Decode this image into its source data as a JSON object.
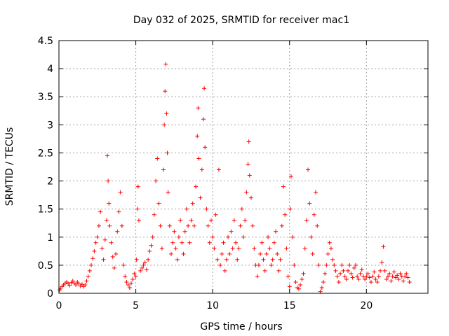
{
  "chart_data": {
    "type": "scatter",
    "title": "Day 032 of 2025, SRMTID for receiver mac1",
    "xlabel": "GPS time / hours",
    "ylabel": "SRMTID / TECUs",
    "xlim": [
      0,
      24
    ],
    "ylim": [
      0,
      4.5
    ],
    "xticks": [
      0,
      5,
      10,
      15,
      20
    ],
    "yticks": [
      0,
      0.5,
      1,
      1.5,
      2,
      2.5,
      3,
      3.5,
      4,
      4.5
    ],
    "xtick_labels": [
      "0",
      "5",
      "10",
      "15",
      "20"
    ],
    "ytick_labels": [
      "0",
      "0.5",
      "1",
      "1.5",
      "2",
      "2.5",
      "3",
      "3.5",
      "4",
      "4.5"
    ],
    "grid": true,
    "marker": "+",
    "color": "#ff0000",
    "series": [
      {
        "name": "SRMTID",
        "points": [
          [
            0.05,
            0.06
          ],
          [
            0.1,
            0.09
          ],
          [
            0.2,
            0.12
          ],
          [
            0.3,
            0.15
          ],
          [
            0.4,
            0.18
          ],
          [
            0.5,
            0.2
          ],
          [
            0.6,
            0.17
          ],
          [
            0.7,
            0.14
          ],
          [
            0.8,
            0.19
          ],
          [
            0.9,
            0.22
          ],
          [
            1.0,
            0.18
          ],
          [
            1.1,
            0.15
          ],
          [
            1.2,
            0.2
          ],
          [
            1.3,
            0.17
          ],
          [
            1.4,
            0.13
          ],
          [
            1.5,
            0.16
          ],
          [
            1.6,
            0.12
          ],
          [
            1.7,
            0.15
          ],
          [
            1.8,
            0.22
          ],
          [
            1.9,
            0.3
          ],
          [
            2.0,
            0.4
          ],
          [
            2.1,
            0.5
          ],
          [
            2.2,
            0.62
          ],
          [
            2.3,
            0.75
          ],
          [
            2.4,
            0.9
          ],
          [
            2.5,
            1.0
          ],
          [
            2.6,
            1.2
          ],
          [
            2.7,
            1.45
          ],
          [
            2.8,
            0.8
          ],
          [
            2.9,
            0.6
          ],
          [
            3.0,
            0.95
          ],
          [
            3.1,
            1.3
          ],
          [
            3.15,
            2.45
          ],
          [
            3.2,
            2.0
          ],
          [
            3.25,
            1.6
          ],
          [
            3.3,
            1.2
          ],
          [
            3.4,
            0.9
          ],
          [
            3.5,
            0.65
          ],
          [
            3.6,
            0.45
          ],
          [
            3.7,
            0.7
          ],
          [
            3.8,
            1.1
          ],
          [
            3.9,
            1.45
          ],
          [
            4.0,
            1.8
          ],
          [
            4.1,
            1.2
          ],
          [
            4.2,
            0.5
          ],
          [
            4.3,
            0.3
          ],
          [
            4.4,
            0.2
          ],
          [
            4.5,
            0.15
          ],
          [
            4.6,
            0.1
          ],
          [
            4.7,
            0.18
          ],
          [
            4.8,
            0.25
          ],
          [
            4.9,
            0.35
          ],
          [
            5.0,
            0.3
          ],
          [
            5.05,
            0.6
          ],
          [
            5.1,
            1.5
          ],
          [
            5.15,
            1.9
          ],
          [
            5.2,
            1.3
          ],
          [
            5.3,
            0.4
          ],
          [
            5.4,
            0.45
          ],
          [
            5.5,
            0.5
          ],
          [
            5.6,
            0.55
          ],
          [
            5.7,
            0.42
          ],
          [
            5.8,
            0.6
          ],
          [
            5.9,
            0.75
          ],
          [
            6.0,
            0.85
          ],
          [
            6.1,
            1.0
          ],
          [
            6.2,
            1.4
          ],
          [
            6.3,
            2.0
          ],
          [
            6.4,
            2.4
          ],
          [
            6.5,
            1.6
          ],
          [
            6.6,
            1.2
          ],
          [
            6.7,
            0.8
          ],
          [
            6.8,
            2.2
          ],
          [
            6.85,
            3.0
          ],
          [
            6.9,
            3.6
          ],
          [
            6.95,
            4.08
          ],
          [
            7.0,
            3.2
          ],
          [
            7.05,
            2.5
          ],
          [
            7.1,
            1.8
          ],
          [
            7.2,
            1.2
          ],
          [
            7.3,
            0.7
          ],
          [
            7.4,
            0.9
          ],
          [
            7.5,
            1.1
          ],
          [
            7.6,
            0.8
          ],
          [
            7.7,
            0.6
          ],
          [
            7.8,
            1.0
          ],
          [
            7.9,
            1.3
          ],
          [
            8.0,
            0.9
          ],
          [
            8.1,
            0.7
          ],
          [
            8.2,
            1.1
          ],
          [
            8.3,
            1.5
          ],
          [
            8.4,
            1.2
          ],
          [
            8.5,
            0.9
          ],
          [
            8.6,
            1.3
          ],
          [
            8.7,
            1.6
          ],
          [
            8.8,
            1.2
          ],
          [
            8.9,
            1.9
          ],
          [
            9.0,
            2.8
          ],
          [
            9.05,
            3.3
          ],
          [
            9.1,
            2.4
          ],
          [
            9.2,
            1.7
          ],
          [
            9.3,
            2.2
          ],
          [
            9.4,
            3.1
          ],
          [
            9.45,
            3.65
          ],
          [
            9.5,
            2.6
          ],
          [
            9.6,
            1.5
          ],
          [
            9.7,
            1.2
          ],
          [
            9.8,
            0.9
          ],
          [
            9.9,
            1.3
          ],
          [
            10.0,
            1.0
          ],
          [
            10.1,
            0.8
          ],
          [
            10.2,
            1.4
          ],
          [
            10.3,
            0.6
          ],
          [
            10.4,
            2.2
          ],
          [
            10.5,
            0.5
          ],
          [
            10.6,
            0.7
          ],
          [
            10.7,
            0.9
          ],
          [
            10.8,
            0.4
          ],
          [
            10.9,
            0.6
          ],
          [
            11.0,
            1.0
          ],
          [
            11.1,
            0.7
          ],
          [
            11.2,
            1.1
          ],
          [
            11.3,
            0.8
          ],
          [
            11.4,
            1.3
          ],
          [
            11.5,
            0.9
          ],
          [
            11.6,
            0.6
          ],
          [
            11.7,
            0.8
          ],
          [
            11.8,
            1.2
          ],
          [
            11.9,
            1.5
          ],
          [
            12.0,
            1.0
          ],
          [
            12.1,
            1.3
          ],
          [
            12.2,
            1.8
          ],
          [
            12.3,
            2.3
          ],
          [
            12.35,
            2.7
          ],
          [
            12.4,
            2.1
          ],
          [
            12.5,
            1.7
          ],
          [
            12.6,
            1.2
          ],
          [
            12.7,
            0.8
          ],
          [
            12.8,
            0.5
          ],
          [
            12.9,
            0.3
          ],
          [
            13.0,
            0.5
          ],
          [
            13.1,
            0.7
          ],
          [
            13.2,
            0.9
          ],
          [
            13.3,
            0.6
          ],
          [
            13.4,
            0.4
          ],
          [
            13.5,
            0.7
          ],
          [
            13.6,
            1.0
          ],
          [
            13.7,
            0.8
          ],
          [
            13.8,
            0.5
          ],
          [
            13.9,
            0.6
          ],
          [
            14.0,
            0.9
          ],
          [
            14.1,
            1.1
          ],
          [
            14.2,
            0.7
          ],
          [
            14.3,
            0.4
          ],
          [
            14.4,
            0.6
          ],
          [
            14.5,
            1.2
          ],
          [
            14.6,
            1.9
          ],
          [
            14.7,
            1.4
          ],
          [
            14.8,
            0.8
          ],
          [
            14.9,
            0.3
          ],
          [
            15.0,
            0.12
          ],
          [
            15.05,
            1.5
          ],
          [
            15.1,
            2.08
          ],
          [
            15.2,
            1.0
          ],
          [
            15.3,
            0.5
          ],
          [
            15.4,
            0.2
          ],
          [
            15.5,
            0.1
          ],
          [
            15.6,
            0.08
          ],
          [
            15.7,
            0.15
          ],
          [
            15.8,
            0.25
          ],
          [
            15.9,
            0.35
          ],
          [
            16.0,
            0.8
          ],
          [
            16.1,
            1.3
          ],
          [
            16.2,
            2.2
          ],
          [
            16.3,
            1.6
          ],
          [
            16.4,
            1.0
          ],
          [
            16.5,
            0.7
          ],
          [
            16.6,
            1.4
          ],
          [
            16.7,
            1.8
          ],
          [
            16.8,
            1.2
          ],
          [
            16.9,
            0.5
          ],
          [
            17.0,
            0.03
          ],
          [
            17.1,
            0.1
          ],
          [
            17.2,
            0.2
          ],
          [
            17.3,
            0.35
          ],
          [
            17.4,
            0.5
          ],
          [
            17.5,
            0.7
          ],
          [
            17.6,
            0.9
          ],
          [
            17.7,
            0.8
          ],
          [
            17.8,
            0.6
          ],
          [
            17.9,
            0.5
          ],
          [
            18.0,
            0.4
          ],
          [
            18.1,
            0.3
          ],
          [
            18.2,
            0.2
          ],
          [
            18.3,
            0.35
          ],
          [
            18.4,
            0.5
          ],
          [
            18.5,
            0.4
          ],
          [
            18.6,
            0.3
          ],
          [
            18.7,
            0.25
          ],
          [
            18.8,
            0.4
          ],
          [
            18.9,
            0.5
          ],
          [
            19.0,
            0.35
          ],
          [
            19.1,
            0.28
          ],
          [
            19.2,
            0.45
          ],
          [
            19.3,
            0.5
          ],
          [
            19.4,
            0.3
          ],
          [
            19.5,
            0.25
          ],
          [
            19.6,
            0.35
          ],
          [
            19.7,
            0.42
          ],
          [
            19.8,
            0.3
          ],
          [
            19.9,
            0.25
          ],
          [
            20.0,
            0.3
          ],
          [
            20.1,
            0.35
          ],
          [
            20.2,
            0.28
          ],
          [
            20.3,
            0.2
          ],
          [
            20.4,
            0.3
          ],
          [
            20.5,
            0.38
          ],
          [
            20.6,
            0.25
          ],
          [
            20.7,
            0.2
          ],
          [
            20.8,
            0.3
          ],
          [
            20.9,
            0.4
          ],
          [
            21.0,
            0.55
          ],
          [
            21.1,
            0.83
          ],
          [
            21.2,
            0.4
          ],
          [
            21.3,
            0.25
          ],
          [
            21.4,
            0.3
          ],
          [
            21.5,
            0.35
          ],
          [
            21.6,
            0.22
          ],
          [
            21.7,
            0.3
          ],
          [
            21.8,
            0.38
          ],
          [
            21.9,
            0.28
          ],
          [
            22.0,
            0.32
          ],
          [
            22.1,
            0.25
          ],
          [
            22.2,
            0.35
          ],
          [
            22.3,
            0.3
          ],
          [
            22.4,
            0.22
          ],
          [
            22.5,
            0.3
          ],
          [
            22.6,
            0.35
          ],
          [
            22.7,
            0.28
          ],
          [
            22.8,
            0.2
          ]
        ]
      }
    ]
  }
}
